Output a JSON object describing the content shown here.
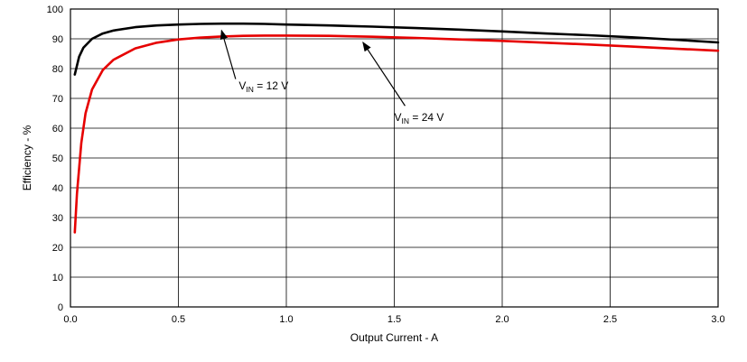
{
  "chart_data": {
    "type": "line",
    "title": "",
    "xlabel": "Output Current - A",
    "ylabel": "Efficiency - %",
    "xlim": [
      0,
      3
    ],
    "ylim": [
      0,
      100
    ],
    "grid": true,
    "frame_color": "#000000",
    "grid_color": "#000000",
    "x_ticks": [
      0,
      0.5,
      1,
      1.5,
      2,
      2.5,
      3
    ],
    "x_tick_labels": [
      "0.0",
      "0.5",
      "1.0",
      "1.5",
      "2.0",
      "2.5",
      "3.0"
    ],
    "y_ticks": [
      0,
      10,
      20,
      30,
      40,
      50,
      60,
      70,
      80,
      90,
      100
    ],
    "y_tick_labels": [
      "0",
      "10",
      "20",
      "30",
      "40",
      "50",
      "60",
      "70",
      "80",
      "90",
      "100"
    ],
    "series": [
      {
        "name": "VIN = 12 V",
        "color": "#000000",
        "points": [
          [
            0.02,
            78
          ],
          [
            0.04,
            84
          ],
          [
            0.06,
            87
          ],
          [
            0.1,
            90
          ],
          [
            0.15,
            91.8
          ],
          [
            0.2,
            92.8
          ],
          [
            0.3,
            93.9
          ],
          [
            0.4,
            94.5
          ],
          [
            0.5,
            94.8
          ],
          [
            0.6,
            95.0
          ],
          [
            0.7,
            95.1
          ],
          [
            0.8,
            95.1
          ],
          [
            0.9,
            95.0
          ],
          [
            1.0,
            94.8
          ],
          [
            1.2,
            94.5
          ],
          [
            1.4,
            94.1
          ],
          [
            1.6,
            93.6
          ],
          [
            1.8,
            93.1
          ],
          [
            2.0,
            92.5
          ],
          [
            2.2,
            91.8
          ],
          [
            2.4,
            91.2
          ],
          [
            2.6,
            90.5
          ],
          [
            2.8,
            89.7
          ],
          [
            3.0,
            88.8
          ]
        ]
      },
      {
        "name": "VIN = 24 V",
        "color": "#e60000",
        "points": [
          [
            0.02,
            25
          ],
          [
            0.03,
            38
          ],
          [
            0.05,
            55
          ],
          [
            0.07,
            65
          ],
          [
            0.1,
            73
          ],
          [
            0.15,
            79.5
          ],
          [
            0.2,
            83
          ],
          [
            0.3,
            86.8
          ],
          [
            0.4,
            88.7
          ],
          [
            0.5,
            89.8
          ],
          [
            0.6,
            90.4
          ],
          [
            0.7,
            90.8
          ],
          [
            0.8,
            91.0
          ],
          [
            0.9,
            91.1
          ],
          [
            1.0,
            91.1
          ],
          [
            1.2,
            91.0
          ],
          [
            1.4,
            90.7
          ],
          [
            1.6,
            90.3
          ],
          [
            1.8,
            89.8
          ],
          [
            2.0,
            89.3
          ],
          [
            2.2,
            88.7
          ],
          [
            2.4,
            88.1
          ],
          [
            2.6,
            87.4
          ],
          [
            2.8,
            86.7
          ],
          [
            3.0,
            86.0
          ]
        ]
      }
    ],
    "annotations": [
      {
        "pre": "V",
        "sub": "IN",
        "post": " = 12 V",
        "text_x": 0.78,
        "text_y": 73,
        "arrow_from": [
          0.765,
          76.5
        ],
        "arrow_to": [
          0.7,
          92.8
        ]
      },
      {
        "pre": "V",
        "sub": "IN",
        "post": " = 24 V",
        "text_x": 1.5,
        "text_y": 62.5,
        "arrow_from": [
          1.55,
          67.5
        ],
        "arrow_to": [
          1.355,
          88.8
        ]
      }
    ]
  }
}
